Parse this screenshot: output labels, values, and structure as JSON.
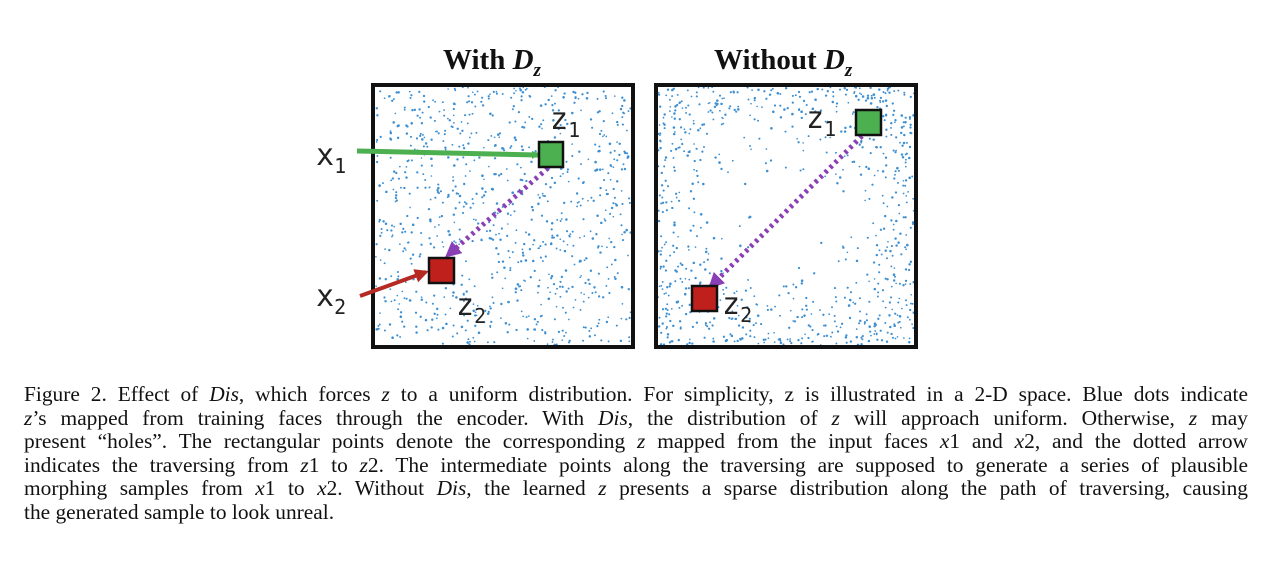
{
  "figure": {
    "panels": [
      {
        "title_main": "With ",
        "title_symbol": "D",
        "title_sub": "z"
      },
      {
        "title_main": "Without ",
        "title_symbol": "D",
        "title_sub": "z"
      }
    ],
    "labels": {
      "x1": {
        "base": "x",
        "sub": "1"
      },
      "x2": {
        "base": "x",
        "sub": "2"
      },
      "z1_left": {
        "base": "z",
        "sub": "1"
      },
      "z2_left": {
        "base": "z",
        "sub": "2"
      },
      "z1_right": {
        "base": "z",
        "sub": "1"
      },
      "z2_right": {
        "base": "z",
        "sub": "2"
      }
    },
    "colors": {
      "dots": "#3d8fd1",
      "z1_square": "#4caf50",
      "z2_square": "#c0201c",
      "x1_arrow": "#4caf50",
      "x2_arrow": "#b52a22",
      "traverse_arrow": "#8a3fb5",
      "border": "#111111"
    }
  },
  "caption": {
    "lines": [
      [
        "Figure 2.  Effect of ",
        {
          "i": "Dis"
        },
        ", which forces ",
        {
          "i": "z"
        },
        " to a uniform distribution. For simplicity, z is illustrated in a 2-D space. Blue dots indicate"
      ],
      [
        {
          "i": "z"
        },
        "’s mapped from training faces through the encoder. With ",
        {
          "i": "Dis"
        },
        ", the distribution of ",
        {
          "i": "z"
        },
        " will approach uniform. Otherwise, ",
        {
          "i": "z"
        },
        " may"
      ],
      [
        "present “holes”. The rectangular points denote the corresponding ",
        {
          "i": "z"
        },
        " mapped from the input faces ",
        {
          "i": "x"
        },
        "1 and ",
        {
          "i": "x"
        },
        "2, and the dotted arrow"
      ],
      [
        "indicates the traversing from ",
        {
          "i": "z"
        },
        "1 to ",
        {
          "i": "z"
        },
        "2. The intermediate points along the traversing are supposed to generate a series of plausible"
      ],
      [
        "morphing samples from ",
        {
          "i": "x"
        },
        "1 to ",
        {
          "i": "x"
        },
        "2. Without ",
        {
          "i": "Dis"
        },
        ", the learned ",
        {
          "i": "z"
        },
        " presents a sparse distribution along the path of traversing, causing"
      ],
      [
        "the generated sample to look unreal."
      ]
    ]
  }
}
